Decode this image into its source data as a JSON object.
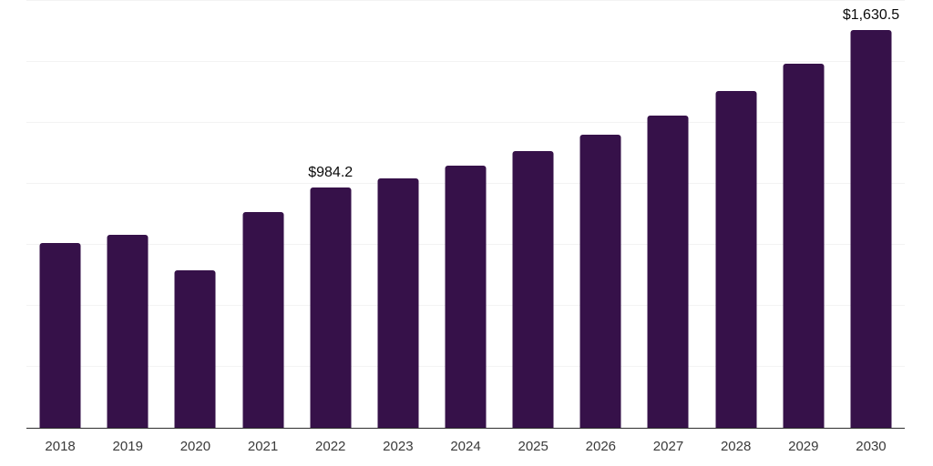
{
  "chart_style": {
    "background_color": "#ffffff",
    "bar_color": "#361149",
    "grid_color": "#f3f3f3",
    "axis_line_color": "#2e2e2e",
    "tick_label_color": "#3a3a3a",
    "data_label_color": "#0a0a0a"
  },
  "chart_data": {
    "type": "bar",
    "title": "",
    "xlabel": "",
    "ylabel": "",
    "categories": [
      "2018",
      "2019",
      "2020",
      "2021",
      "2022",
      "2023",
      "2024",
      "2025",
      "2026",
      "2027",
      "2028",
      "2029",
      "2030"
    ],
    "values": [
      758.6,
      792.2,
      646.4,
      885.6,
      984.2,
      1023.8,
      1076.1,
      1135.9,
      1203.4,
      1281.7,
      1382.6,
      1494.7,
      1630.5
    ],
    "data_labels": [
      "",
      "",
      "",
      "",
      "$984.2",
      "",
      "",
      "",
      "",
      "",
      "",
      "",
      "$1,630.5"
    ],
    "ylim": [
      0,
      1755
    ],
    "grid_interval": 250,
    "grid": "horizontal",
    "legend_position": "none",
    "y_axis_labels_visible": false
  }
}
